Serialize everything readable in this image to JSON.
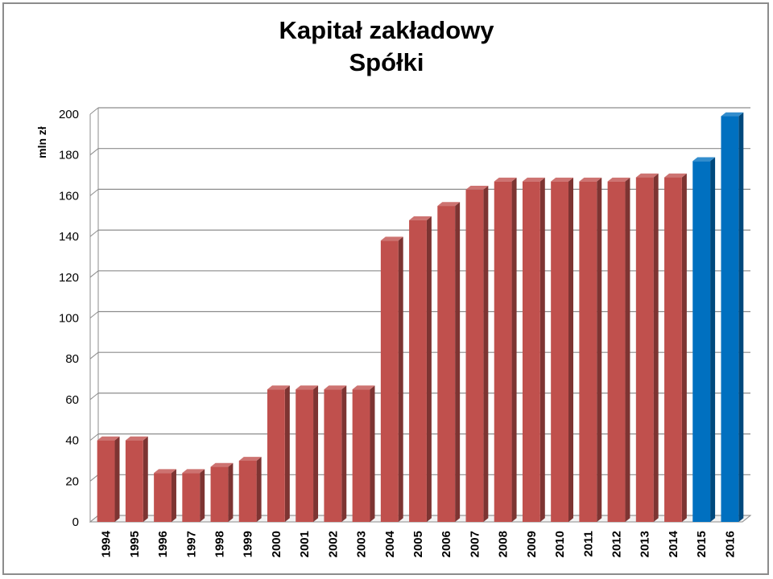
{
  "chart_data": {
    "type": "bar",
    "title": [
      "Kapitał zakładowy",
      "Spółki"
    ],
    "ylabel": "mln zł",
    "xlabel": "",
    "ylim": [
      0,
      200
    ],
    "yticks": [
      0,
      20,
      40,
      60,
      80,
      100,
      120,
      140,
      160,
      180,
      200
    ],
    "grid": true,
    "categories": [
      "1994",
      "1995",
      "1996",
      "1997",
      "1998",
      "1999",
      "2000",
      "2001",
      "2002",
      "2003",
      "2004",
      "2005",
      "2006",
      "2007",
      "2008",
      "2009",
      "2010",
      "2011",
      "2012",
      "2013",
      "2014",
      "2015",
      "2016"
    ],
    "values": [
      40,
      40,
      24,
      24,
      27,
      30,
      65,
      65,
      65,
      65,
      138,
      148,
      155,
      163,
      167,
      167,
      167,
      167,
      167,
      169,
      169,
      177,
      199
    ],
    "bar_colors": [
      "#c0504d",
      "#c0504d",
      "#c0504d",
      "#c0504d",
      "#c0504d",
      "#c0504d",
      "#c0504d",
      "#c0504d",
      "#c0504d",
      "#c0504d",
      "#c0504d",
      "#c0504d",
      "#c0504d",
      "#c0504d",
      "#c0504d",
      "#c0504d",
      "#c0504d",
      "#c0504d",
      "#c0504d",
      "#c0504d",
      "#c0504d",
      "#0070c0",
      "#0070c0"
    ]
  }
}
